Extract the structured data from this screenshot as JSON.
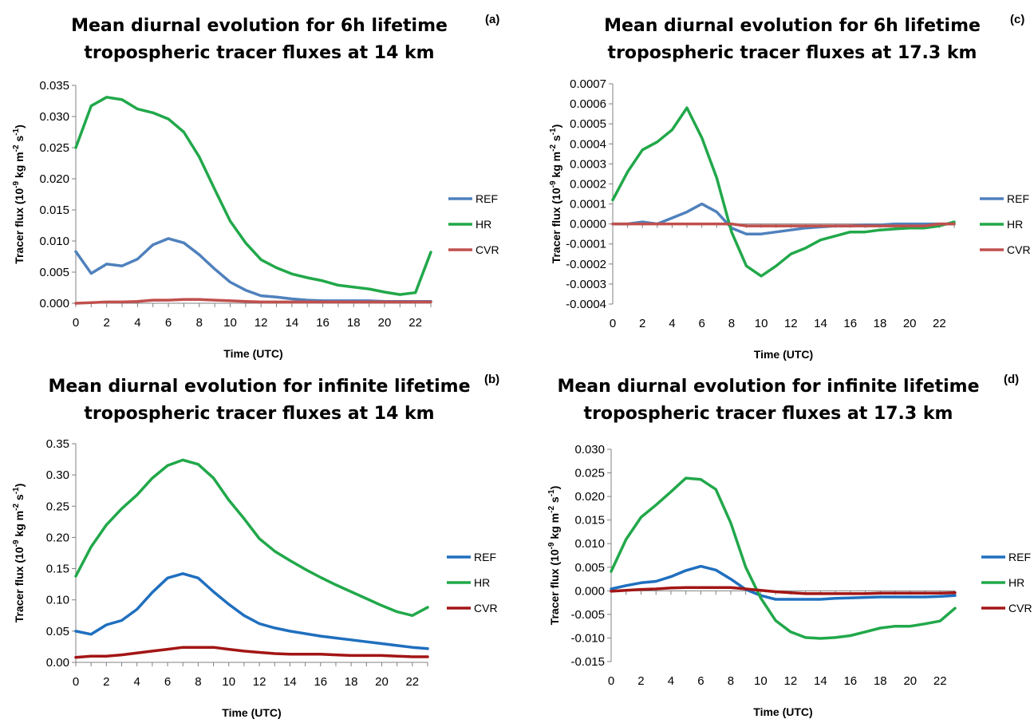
{
  "colors": {
    "REF": "#4f81bd",
    "HR": "#21a84a",
    "CVR": "#c0504d",
    "REF_dark": "#1f6fbf",
    "CVR_dark": "#a31515"
  },
  "chart_data": [
    {
      "type": "line",
      "panel_label": "(a)",
      "title_line1": "Mean diurnal evolution for 6h lifetime",
      "title_line2": "tropospheric tracer fluxes at 14 km",
      "xlabel": "Time (UTC)",
      "ylabel_main": "Tracer flux (10",
      "ylabel_e1": "-9",
      "ylabel_mid": " kg m",
      "ylabel_e2": "-2",
      "ylabel_mid2": " s",
      "ylabel_e3": "-1",
      "ylabel_end": ")",
      "ylim": [
        0,
        0.035
      ],
      "ystep": 0.005,
      "ydecimals": 3,
      "xticks": [
        0,
        2,
        4,
        6,
        8,
        10,
        12,
        14,
        16,
        18,
        20,
        22
      ],
      "x": [
        0,
        1,
        2,
        3,
        4,
        5,
        6,
        7,
        8,
        9,
        10,
        11,
        12,
        13,
        14,
        15,
        16,
        17,
        18,
        19,
        20,
        21,
        22,
        23
      ],
      "series": [
        {
          "name": "REF",
          "color_key": "REF",
          "values": [
            0.0083,
            0.0048,
            0.0063,
            0.006,
            0.0071,
            0.0094,
            0.0104,
            0.0097,
            0.0078,
            0.0055,
            0.0034,
            0.0021,
            0.0012,
            0.001,
            0.0007,
            0.0005,
            0.0004,
            0.0004,
            0.0004,
            0.0004,
            0.0003,
            0.0003,
            0.0003,
            0.0003
          ]
        },
        {
          "name": "HR",
          "color_key": "HR",
          "values": [
            0.025,
            0.0317,
            0.0331,
            0.0327,
            0.0312,
            0.0306,
            0.0296,
            0.0275,
            0.0235,
            0.0183,
            0.0132,
            0.0097,
            0.007,
            0.0057,
            0.0047,
            0.0041,
            0.0036,
            0.0029,
            0.0026,
            0.0023,
            0.0018,
            0.0014,
            0.0017,
            0.0082
          ]
        },
        {
          "name": "CVR",
          "color_key": "CVR",
          "values": [
            0.0,
            0.0001,
            0.0002,
            0.0002,
            0.0003,
            0.0005,
            0.0005,
            0.0006,
            0.0006,
            0.0005,
            0.0004,
            0.0003,
            0.0002,
            0.0002,
            0.0002,
            0.0002,
            0.0002,
            0.0002,
            0.0002,
            0.0002,
            0.0002,
            0.0002,
            0.0002,
            0.0002
          ]
        }
      ]
    },
    {
      "type": "line",
      "panel_label": "(c)",
      "title_line1": "Mean diurnal evolution for 6h lifetime",
      "title_line2": "tropospheric tracer fluxes at 17.3 km",
      "xlabel": "Time (UTC)",
      "ylabel_main": "Tracer flux (10",
      "ylabel_e1": "-9",
      "ylabel_mid": " kg m",
      "ylabel_e2": "-2",
      "ylabel_mid2": " s",
      "ylabel_e3": "-1",
      "ylabel_end": ")",
      "ylim": [
        -0.0004,
        0.0007
      ],
      "ystep": 0.0001,
      "ydecimals": 4,
      "xticks": [
        0,
        2,
        4,
        6,
        8,
        10,
        12,
        14,
        16,
        18,
        20,
        22
      ],
      "x": [
        0,
        1,
        2,
        3,
        4,
        5,
        6,
        7,
        8,
        9,
        10,
        11,
        12,
        13,
        14,
        15,
        16,
        17,
        18,
        19,
        20,
        21,
        22,
        23
      ],
      "series": [
        {
          "name": "REF",
          "color_key": "REF",
          "values": [
            0.0,
            0.0,
            1e-05,
            0.0,
            3e-05,
            6e-05,
            0.0001,
            6e-05,
            -2e-05,
            -5e-05,
            -5e-05,
            -4e-05,
            -3e-05,
            -2e-05,
            -1.5e-05,
            -1e-05,
            -1e-05,
            -5e-06,
            -5e-06,
            0.0,
            0.0,
            0.0,
            0.0,
            0.0
          ]
        },
        {
          "name": "HR",
          "color_key": "HR",
          "values": [
            0.00012,
            0.00026,
            0.00037,
            0.00041,
            0.00047,
            0.00058,
            0.00043,
            0.00023,
            -4e-05,
            -0.00021,
            -0.00026,
            -0.00021,
            -0.00015,
            -0.00012,
            -8e-05,
            -6e-05,
            -4e-05,
            -4e-05,
            -3e-05,
            -2.5e-05,
            -2e-05,
            -2e-05,
            -1e-05,
            1e-05
          ]
        },
        {
          "name": "CVR",
          "color_key": "CVR",
          "values": [
            0.0,
            0.0,
            0.0,
            0.0,
            0.0,
            0.0,
            0.0,
            0.0,
            0.0,
            -1e-05,
            -1e-05,
            -1e-05,
            -1e-05,
            -1e-05,
            -1e-05,
            -1e-05,
            -1e-05,
            -1e-05,
            -1e-05,
            -1e-05,
            -1e-05,
            -1e-05,
            0.0,
            0.0
          ]
        }
      ]
    },
    {
      "type": "line",
      "panel_label": "(b)",
      "title_line1": "Mean diurnal evolution for infinite lifetime",
      "title_line2": "tropospheric tracer fluxes at 14 km",
      "xlabel": "Time (UTC)",
      "ylabel_main": "Tracer flux (10",
      "ylabel_e1": "-9",
      "ylabel_mid": " kg m",
      "ylabel_e2": "-2",
      "ylabel_mid2": " s",
      "ylabel_e3": "-1",
      "ylabel_end": ")",
      "ylim": [
        0,
        0.35
      ],
      "ystep": 0.05,
      "ydecimals": 2,
      "xticks": [
        0,
        2,
        4,
        6,
        8,
        10,
        12,
        14,
        16,
        18,
        20,
        22
      ],
      "x": [
        0,
        1,
        2,
        3,
        4,
        5,
        6,
        7,
        8,
        9,
        10,
        11,
        12,
        13,
        14,
        15,
        16,
        17,
        18,
        19,
        20,
        21,
        22,
        23
      ],
      "series": [
        {
          "name": "REF",
          "color_key": "REF_dark",
          "values": [
            0.05,
            0.045,
            0.06,
            0.067,
            0.085,
            0.112,
            0.135,
            0.142,
            0.135,
            0.113,
            0.093,
            0.075,
            0.062,
            0.055,
            0.05,
            0.046,
            0.042,
            0.039,
            0.036,
            0.033,
            0.03,
            0.027,
            0.024,
            0.022
          ]
        },
        {
          "name": "HR",
          "color_key": "HR",
          "values": [
            0.138,
            0.185,
            0.22,
            0.246,
            0.268,
            0.295,
            0.315,
            0.324,
            0.317,
            0.295,
            0.26,
            0.23,
            0.198,
            0.178,
            0.163,
            0.149,
            0.136,
            0.124,
            0.113,
            0.102,
            0.091,
            0.081,
            0.075,
            0.088
          ]
        },
        {
          "name": "CVR",
          "color_key": "CVR_dark",
          "values": [
            0.008,
            0.01,
            0.01,
            0.012,
            0.015,
            0.018,
            0.021,
            0.024,
            0.024,
            0.024,
            0.021,
            0.018,
            0.016,
            0.014,
            0.013,
            0.013,
            0.013,
            0.012,
            0.011,
            0.011,
            0.011,
            0.01,
            0.009,
            0.009
          ]
        }
      ]
    },
    {
      "type": "line",
      "panel_label": "(d)",
      "title_line1": "Mean diurnal evolution for infinite lifetime",
      "title_line2": "tropospheric tracer fluxes at 17.3 km",
      "xlabel": "Time (UTC)",
      "ylabel_main": "Tracer flux (10",
      "ylabel_e1": "-9",
      "ylabel_mid": " kg m",
      "ylabel_e2": "-2",
      "ylabel_mid2": " s",
      "ylabel_e3": "-1",
      "ylabel_end": ")",
      "ylim": [
        -0.015,
        0.03
      ],
      "ystep": 0.005,
      "ydecimals": 3,
      "xticks": [
        0,
        2,
        4,
        6,
        8,
        10,
        12,
        14,
        16,
        18,
        20,
        22
      ],
      "x": [
        0,
        1,
        2,
        3,
        4,
        5,
        6,
        7,
        8,
        9,
        10,
        11,
        12,
        13,
        14,
        15,
        16,
        17,
        18,
        19,
        20,
        21,
        22,
        23
      ],
      "series": [
        {
          "name": "REF",
          "color_key": "REF_dark",
          "values": [
            0.0004,
            0.0011,
            0.0017,
            0.002,
            0.003,
            0.0043,
            0.0052,
            0.0044,
            0.0025,
            0.0003,
            -0.001,
            -0.0018,
            -0.0018,
            -0.0018,
            -0.0018,
            -0.0016,
            -0.0015,
            -0.0014,
            -0.0013,
            -0.0013,
            -0.0013,
            -0.0013,
            -0.0012,
            -0.001
          ]
        },
        {
          "name": "HR",
          "color_key": "HR",
          "values": [
            0.0041,
            0.0109,
            0.0156,
            0.0182,
            0.021,
            0.0239,
            0.0236,
            0.0215,
            0.0144,
            0.005,
            -0.0015,
            -0.0063,
            -0.0087,
            -0.0099,
            -0.0101,
            -0.0099,
            -0.0095,
            -0.0087,
            -0.0079,
            -0.0075,
            -0.0075,
            -0.007,
            -0.0064,
            -0.0037
          ]
        },
        {
          "name": "CVR",
          "color_key": "CVR_dark",
          "values": [
            -0.0001,
            0.0001,
            0.0003,
            0.0004,
            0.0006,
            0.0007,
            0.0007,
            0.0007,
            0.0007,
            0.0004,
            0.0001,
            -0.0002,
            -0.0004,
            -0.0006,
            -0.0006,
            -0.0006,
            -0.0006,
            -0.0006,
            -0.0005,
            -0.0005,
            -0.0005,
            -0.0005,
            -0.0005,
            -0.0004
          ]
        }
      ]
    }
  ]
}
